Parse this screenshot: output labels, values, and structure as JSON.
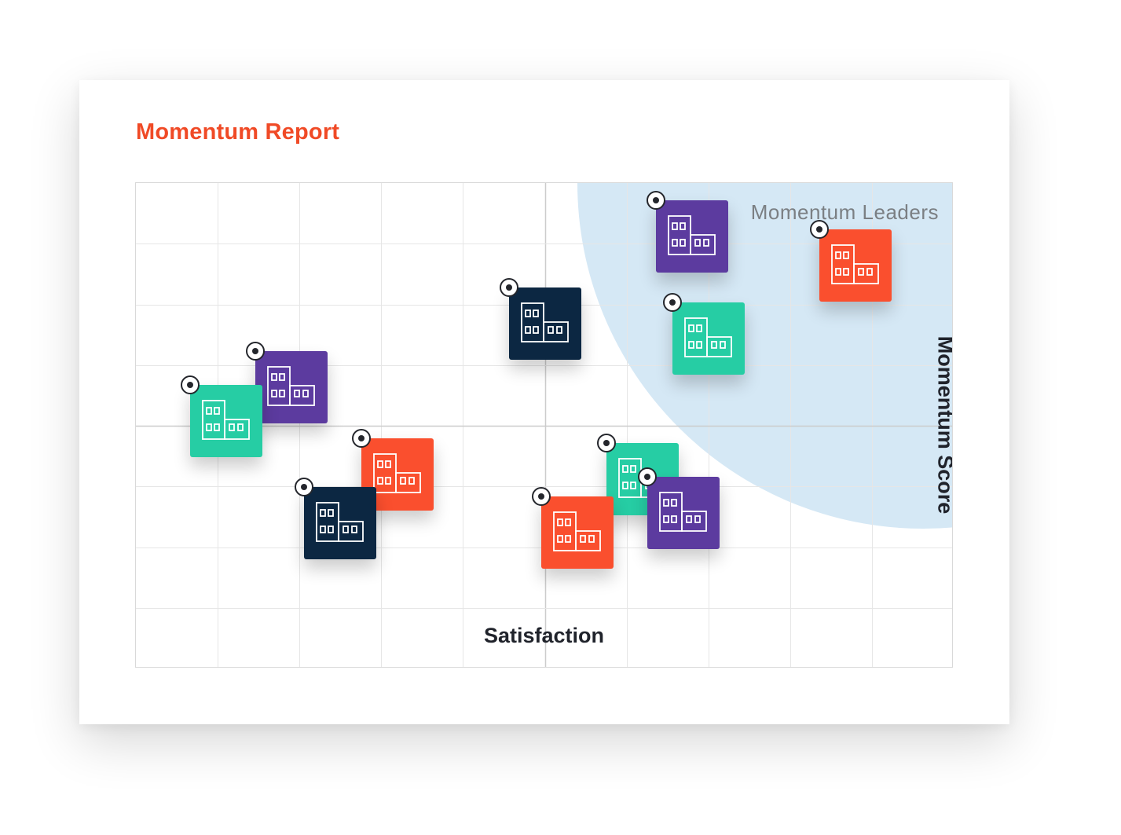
{
  "report": {
    "title": "Momentum Report",
    "title_color": "#f04a26"
  },
  "colors": {
    "orange": "#fa4f2e",
    "purple": "#5c3b9f",
    "green": "#26cda4",
    "navy": "#0c2742",
    "leaders_zone": "#d5e8f5",
    "grid": "#e6e6e6",
    "center_lines": "#cccccc"
  },
  "chart_data": {
    "type": "scatter",
    "title": "Momentum Report",
    "xlabel": "Satisfaction",
    "ylabel": "Momentum Score",
    "xlim": [
      0,
      10
    ],
    "ylim": [
      0,
      10
    ],
    "grid": true,
    "region_label": "Momentum Leaders",
    "region": "top-right quarter-circle",
    "points": [
      {
        "x": 6.8,
        "y": 8.9,
        "color": "purple",
        "icon": "building-icon"
      },
      {
        "x": 8.8,
        "y": 8.3,
        "color": "orange",
        "icon": "building-icon"
      },
      {
        "x": 5.0,
        "y": 7.1,
        "color": "navy",
        "icon": "building-icon"
      },
      {
        "x": 7.0,
        "y": 6.8,
        "color": "green",
        "icon": "building-icon"
      },
      {
        "x": 1.9,
        "y": 5.8,
        "color": "purple",
        "icon": "building-icon"
      },
      {
        "x": 1.1,
        "y": 5.1,
        "color": "green",
        "icon": "building-icon"
      },
      {
        "x": 3.2,
        "y": 4.0,
        "color": "orange",
        "icon": "building-icon"
      },
      {
        "x": 6.2,
        "y": 3.9,
        "color": "green",
        "icon": "building-icon"
      },
      {
        "x": 2.5,
        "y": 3.0,
        "color": "navy",
        "icon": "building-icon"
      },
      {
        "x": 6.7,
        "y": 3.2,
        "color": "purple",
        "icon": "building-icon"
      },
      {
        "x": 5.4,
        "y": 2.8,
        "color": "orange",
        "icon": "building-icon"
      }
    ]
  }
}
